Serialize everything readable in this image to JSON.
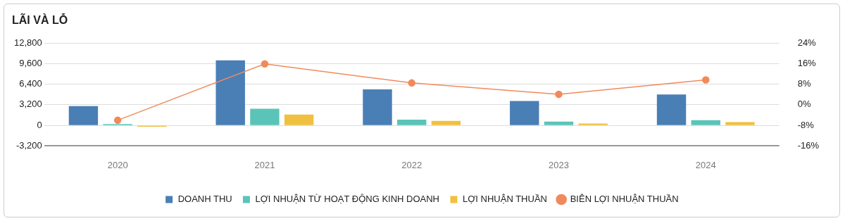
{
  "chart_data": {
    "type": "bar",
    "title": "LÃI VÀ LỖ",
    "categories": [
      "2020",
      "2021",
      "2022",
      "2023",
      "2024"
    ],
    "series": [
      {
        "name": "DOANH THU",
        "color": "#4a7fb5",
        "values": [
          3000,
          10100,
          5600,
          3800,
          4800
        ]
      },
      {
        "name": "LỢI NHUẬN TỪ HOẠT ĐỘNG KINH DOANH",
        "color": "#5bc4b8",
        "values": [
          200,
          2600,
          900,
          600,
          800
        ]
      },
      {
        "name": "LỢI NHUẬN THUẦN",
        "color": "#f0c040",
        "values": [
          -200,
          1700,
          700,
          300,
          500
        ]
      },
      {
        "name": "BIÊN LỢI NHUẬN THUẦN",
        "type": "line",
        "axis": "y2",
        "color": "#f08a5d",
        "values": [
          -6.0,
          15.9,
          8.5,
          4.1,
          9.7
        ]
      }
    ],
    "ylim": [
      -3200,
      12800
    ],
    "yticks": [
      {
        "value": -3200,
        "label": "-3,200"
      },
      0,
      {
        "value": 3200,
        "label": "3,200"
      },
      {
        "value": 6400,
        "label": "6,400"
      },
      {
        "value": 9600,
        "label": "9,600"
      },
      {
        "value": 12800,
        "label": "12,800"
      }
    ],
    "y2lim": [
      -16,
      24
    ],
    "y2ticks": [
      {
        "value": -16,
        "label": "-16%"
      },
      {
        "value": -8,
        "label": "-8%"
      },
      {
        "value": 0,
        "label": "0%"
      },
      {
        "value": 8,
        "label": "8%"
      },
      {
        "value": 16,
        "label": "16%"
      },
      {
        "value": 24,
        "label": "24%"
      }
    ],
    "grid": "y",
    "legend": "bottom",
    "marker": "circle"
  }
}
